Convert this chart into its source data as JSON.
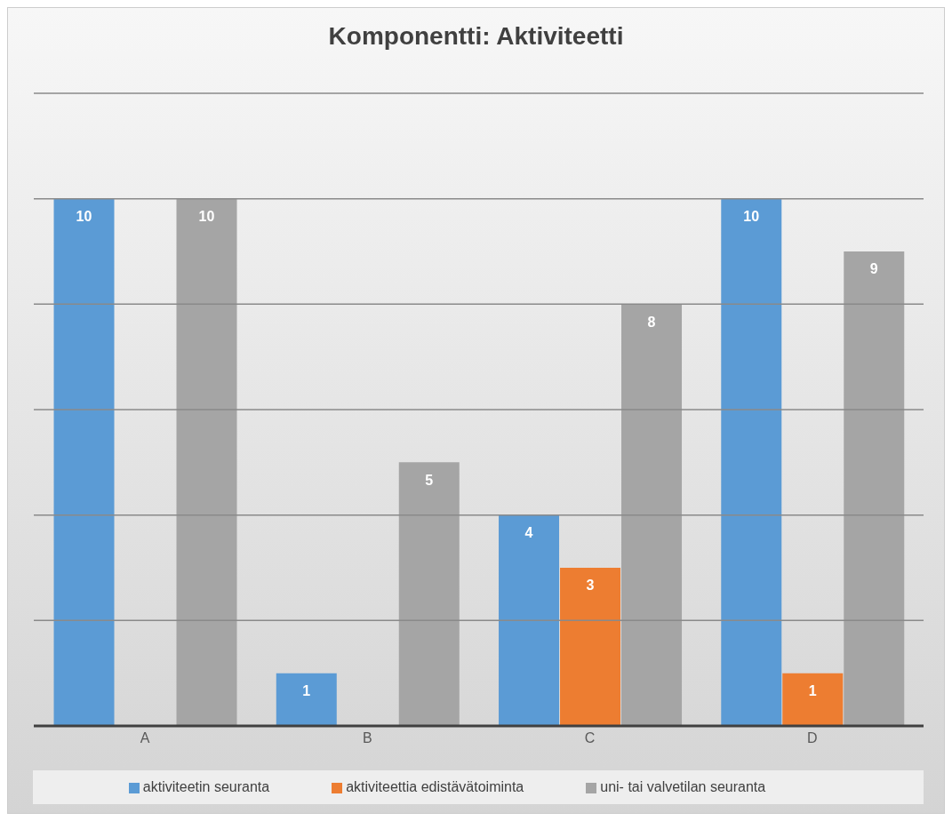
{
  "chart_data": {
    "type": "bar",
    "title": "Komponentti: Aktiviteetti",
    "categories": [
      "A",
      "B",
      "C",
      "D"
    ],
    "series": [
      {
        "name": "aktiviteetin seuranta",
        "color": "#5b9bd5",
        "values": [
          10,
          1,
          4,
          10
        ]
      },
      {
        "name": "aktiviteettia edistävätoiminta",
        "color": "#ed7d31",
        "values": [
          null,
          null,
          3,
          1
        ]
      },
      {
        "name": "uni- tai valvetilan seuranta",
        "color": "#a5a5a5",
        "values": [
          10,
          5,
          8,
          9
        ]
      }
    ],
    "ylim": [
      0,
      12
    ],
    "yticks": [
      {
        "value": 0,
        "label": null
      },
      {
        "value": 2,
        "label": null
      },
      {
        "value": 4,
        "label": null
      },
      {
        "value": 6,
        "label": null
      },
      {
        "value": 8,
        "label": null
      },
      {
        "value": 10,
        "label": null
      },
      {
        "value": 12,
        "label": null
      }
    ],
    "grid": "y",
    "legend": "bottom",
    "tick_labels": "x",
    "data_labels": true
  }
}
